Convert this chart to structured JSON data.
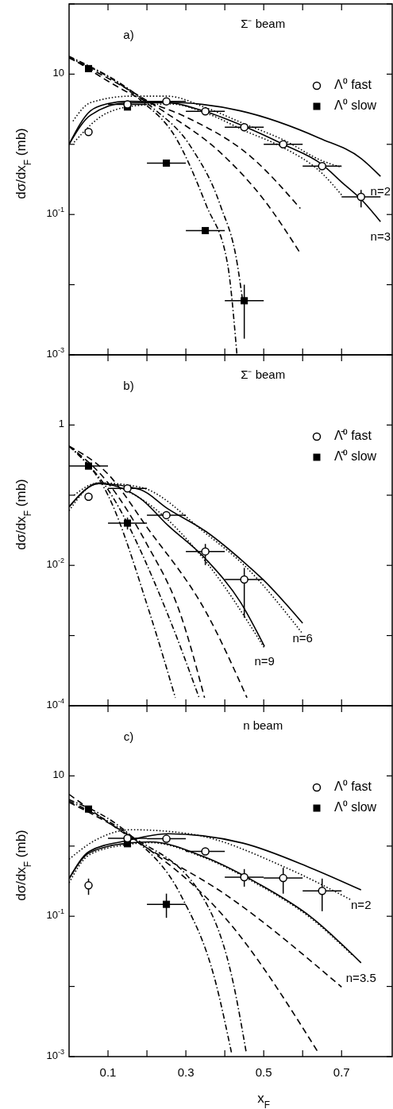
{
  "chart_data": [
    {
      "type": "line",
      "title": "Σ⁻ beam",
      "ylabel": "dσ/dx$_{F}$ (mb)",
      "log": true,
      "legend": "top right",
      "tick_labels": "y",
      "xlim": [
        0,
        0.83
      ],
      "ylim": [
        0.001,
        100
      ],
      "xticks": [
        {
          "value": 0.1,
          "label": null
        },
        {
          "value": 0.2,
          "label": null
        },
        {
          "value": 0.3,
          "label": null
        },
        {
          "value": 0.4,
          "label": null
        },
        {
          "value": 0.5,
          "label": null
        },
        {
          "value": 0.6,
          "label": null
        },
        {
          "value": 0.7,
          "label": null
        }
      ],
      "yticks": [
        {
          "value": 100,
          "label": null
        },
        {
          "value": 10,
          "label": "10"
        },
        {
          "value": 1,
          "label": null
        },
        {
          "value": 0.1,
          "label": "10$^{-1}$"
        },
        {
          "value": 0.01,
          "label": null
        },
        {
          "value": 0.001,
          "label": "10$^{-3}$"
        }
      ],
      "annotations": [
        "a)",
        {
          "text": "n=2",
          "x": 0.8,
          "y": 0.35
        },
        {
          "text": "n=3",
          "x": 0.8,
          "y": 0.079
        }
      ],
      "series": [
        {
          "type": "line",
          "color": "#000000",
          "line_style": "solid",
          "x": [
            0,
            0.055,
            0.1,
            0.15,
            0.294,
            0.44,
            0.644,
            0.75,
            0.8
          ],
          "values": [
            1.0,
            3.0,
            3.8,
            4.1,
            3.9,
            3.0,
            1.22,
            0.63,
            0.35
          ]
        },
        {
          "type": "line",
          "color": "#000000",
          "line_style": "solid",
          "x": [
            0,
            0.055,
            0.15,
            0.25,
            0.353,
            0.45,
            0.55,
            0.651,
            0.7,
            0.75,
            0.8
          ],
          "values": [
            1.0,
            2.6,
            3.9,
            3.9,
            2.89,
            1.8,
            1.0,
            0.51,
            0.29,
            0.165,
            0.079
          ]
        },
        {
          "type": "line",
          "color": "#000000",
          "line_style": "dotted",
          "x": [
            0.01,
            0.055,
            0.159,
            0.252,
            0.353,
            0.45,
            0.55,
            0.651,
            0.7
          ],
          "values": [
            2.14,
            3.92,
            4.86,
            4.86,
            3.3,
            1.96,
            1.16,
            0.58,
            0.47
          ]
        },
        {
          "type": "line",
          "color": "#000000",
          "line_style": "dotted",
          "x": [
            0.013,
            0.096,
            0.183,
            0.262,
            0.353,
            0.457,
            0.55,
            0.651,
            0.7
          ],
          "values": [
            1.07,
            2.77,
            3.6,
            3.75,
            2.77,
            1.51,
            0.9,
            0.38,
            0.19
          ]
        },
        {
          "type": "line",
          "color": "#000000",
          "line_style": "dashed",
          "x": [
            0,
            0.183,
            0.294,
            0.472,
            0.594
          ],
          "values": [
            17.9,
            4.47,
            2.54,
            0.63,
            0.122
          ]
        },
        {
          "type": "line",
          "color": "#000000",
          "line_style": "dashed",
          "x": [
            0,
            0.24,
            0.389,
            0.502,
            0.594
          ],
          "values": [
            17.1,
            3.02,
            0.76,
            0.158,
            0.028
          ]
        },
        {
          "type": "line",
          "color": "#000000",
          "line_style": "dashdot",
          "x": [
            0,
            0.183,
            0.273,
            0.353,
            0.407,
            0.431
          ],
          "values": [
            17.1,
            4.28,
            1.27,
            0.133,
            0.0198,
            0.00104
          ]
        },
        {
          "type": "line",
          "color": "#000000",
          "line_style": "dashdot",
          "x": [
            0,
            0.207,
            0.314,
            0.389,
            0.432,
            0.445
          ],
          "values": [
            17.9,
            3.6,
            0.9,
            0.133,
            0.0198,
            0.0064
          ]
        },
        {
          "type": "scatter",
          "name": "Λ⁰ fast",
          "color": "#ffffff",
          "marker": "circle",
          "x": [
            0.05,
            0.15,
            0.25,
            0.35,
            0.45,
            0.55,
            0.65,
            0.75
          ],
          "values": [
            1.5,
            3.7,
            4.1,
            2.95,
            1.75,
            1.0,
            0.49,
            0.178
          ],
          "xerrors": [
            null,
            [
              0.1,
              0.2
            ],
            [
              0.2,
              0.3
            ],
            [
              0.3,
              0.4
            ],
            [
              0.4,
              0.5
            ],
            [
              0.5,
              0.6
            ],
            [
              0.6,
              0.7
            ],
            [
              0.7,
              0.8
            ]
          ],
          "errors": [
            null,
            null,
            null,
            null,
            null,
            null,
            null,
            [
              0.126,
              0.224
            ]
          ]
        },
        {
          "type": "scatter",
          "name": "Λ⁰ slow",
          "color": "#000000",
          "marker": "square",
          "x": [
            0.05,
            0.15,
            0.25,
            0.35,
            0.45
          ],
          "values": [
            12,
            3.4,
            0.54,
            0.059,
            0.0059
          ],
          "xerrors": [
            null,
            null,
            [
              0.2,
              0.3
            ],
            [
              0.3,
              0.4
            ],
            [
              0.4,
              0.5
            ]
          ],
          "errors": [
            null,
            null,
            null,
            null,
            [
              0.0017,
              0.01
            ]
          ]
        }
      ]
    },
    {
      "type": "line",
      "title": "Σ⁻ beam",
      "ylabel": "dσ/dx$_{F}$ (mb)",
      "log": true,
      "legend": "top right",
      "tick_labels": "y",
      "xlim": [
        0,
        0.83
      ],
      "ylim": [
        0.0001,
        10
      ],
      "xticks": [
        {
          "value": 0.1,
          "label": null
        },
        {
          "value": 0.2,
          "label": null
        },
        {
          "value": 0.3,
          "label": null
        },
        {
          "value": 0.4,
          "label": null
        },
        {
          "value": 0.5,
          "label": null
        },
        {
          "value": 0.6,
          "label": null
        },
        {
          "value": 0.7,
          "label": null
        }
      ],
      "yticks": [
        {
          "value": 10,
          "label": null
        },
        {
          "value": 1,
          "label": "1"
        },
        {
          "value": 0.1,
          "label": null
        },
        {
          "value": 0.01,
          "label": "10$^{-2}$"
        },
        {
          "value": 0.001,
          "label": null
        },
        {
          "value": 0.0001,
          "label": "10$^{-4}$"
        }
      ],
      "annotations": [
        "b)",
        {
          "text": "n=6",
          "x": 0.6,
          "y": 0.0015
        },
        {
          "text": "n=9",
          "x": 0.502,
          "y": 0.0007
        }
      ],
      "series": [
        {
          "type": "line",
          "color": "#000000",
          "line_style": "solid",
          "x": [
            0,
            0.076,
            0.183,
            0.252,
            0.353,
            0.45,
            0.502,
            0.6
          ],
          "values": [
            0.068,
            0.146,
            0.12,
            0.065,
            0.03,
            0.011,
            0.006,
            0.0015
          ]
        },
        {
          "type": "line",
          "color": "#000000",
          "line_style": "solid",
          "x": [
            0,
            0.076,
            0.183,
            0.252,
            0.353,
            0.44,
            0.502
          ],
          "values": [
            0.068,
            0.146,
            0.09,
            0.038,
            0.012,
            0.003,
            0.0007
          ]
        },
        {
          "type": "line",
          "color": "#000000",
          "line_style": "dotted",
          "x": [
            0,
            0.076,
            0.183,
            0.353,
            0.45,
            0.6
          ],
          "values": [
            0.06,
            0.15,
            0.13,
            0.028,
            0.01,
            0.00106
          ]
        },
        {
          "type": "line",
          "color": "#000000",
          "line_style": "dotted",
          "x": [
            0.013,
            0.076,
            0.183,
            0.353,
            0.502
          ],
          "values": [
            0.1,
            0.15,
            0.09,
            0.011,
            0.00066
          ]
        },
        {
          "type": "line",
          "color": "#000000",
          "line_style": "dashed",
          "x": [
            0,
            0.1,
            0.2,
            0.353,
            0.457
          ],
          "values": [
            0.5,
            0.2,
            0.035,
            0.0021,
            0.00013
          ]
        },
        {
          "type": "line",
          "color": "#000000",
          "line_style": "dashed",
          "x": [
            0,
            0.1,
            0.2,
            0.285,
            0.348
          ],
          "values": [
            0.5,
            0.15,
            0.02,
            0.0021,
            0.00013
          ]
        },
        {
          "type": "line",
          "color": "#000000",
          "line_style": "dashdot",
          "x": [
            0,
            0.1,
            0.207,
            0.273
          ],
          "values": [
            0.5,
            0.1,
            0.0021,
            0.00013
          ]
        },
        {
          "type": "line",
          "color": "#000000",
          "line_style": "dashdot",
          "x": [
            0,
            0.1,
            0.252,
            0.334
          ],
          "values": [
            0.5,
            0.12,
            0.0021,
            0.00013
          ]
        },
        {
          "type": "scatter",
          "name": "Λ̄⁰ fast",
          "color": "#ffffff",
          "marker": "circle",
          "x": [
            0.05,
            0.15,
            0.25,
            0.35,
            0.45
          ],
          "values": [
            0.095,
            0.125,
            0.052,
            0.0158,
            0.0063
          ],
          "xerrors": [
            null,
            [
              0.1,
              0.2
            ],
            [
              0.2,
              0.3
            ],
            [
              0.3,
              0.4
            ],
            [
              0.4,
              0.5
            ]
          ],
          "errors": [
            null,
            null,
            null,
            [
              0.0101,
              0.0202
            ],
            [
              0.0018,
              0.0092
            ]
          ]
        },
        {
          "type": "scatter",
          "name": "Λ̄⁰ slow",
          "color": "#000000",
          "marker": "square",
          "x": [
            0.05,
            0.15
          ],
          "values": [
            0.26,
            0.04
          ],
          "xerrors": [
            [
              0,
              0.1
            ],
            [
              0.1,
              0.2
            ]
          ],
          "errors": [
            null,
            [
              0.0325,
              0.048
            ]
          ]
        }
      ]
    },
    {
      "type": "line",
      "title": "n beam",
      "xlabel": "x$_{F}$",
      "ylabel": "dσ/dx$_{F}$ (mb)",
      "log": true,
      "legend": "top right",
      "xlim": [
        0,
        0.83
      ],
      "ylim": [
        0.001,
        100
      ],
      "xticks": [
        0.1,
        {
          "value": 0.2,
          "label": null
        },
        0.3,
        {
          "value": 0.4,
          "label": null
        },
        0.5,
        {
          "value": 0.6,
          "label": null
        },
        0.7
      ],
      "yticks": [
        {
          "value": 100,
          "label": null
        },
        {
          "value": 10,
          "label": "10"
        },
        {
          "value": 1,
          "label": null
        },
        {
          "value": 0.1,
          "label": "10$^{-1}$"
        },
        {
          "value": 0.01,
          "label": null
        },
        {
          "value": 0.001,
          "label": "10$^{-3}$"
        }
      ],
      "annotations": [
        "c)",
        {
          "text": "n=2",
          "x": 0.75,
          "y": 0.237
        },
        {
          "text": "n=3.5",
          "x": 0.75,
          "y": 0.0217
        }
      ],
      "series": [
        {
          "type": "line",
          "color": "#000000",
          "line_style": "solid",
          "x": [
            0,
            0.052,
            0.15,
            0.254,
            0.447,
            0.62,
            0.75
          ],
          "values": [
            0.344,
            0.84,
            1.2,
            1.5,
            1.1,
            0.49,
            0.237
          ]
        },
        {
          "type": "line",
          "color": "#000000",
          "line_style": "solid",
          "x": [
            0,
            0.052,
            0.15,
            0.208,
            0.348,
            0.487,
            0.62,
            0.75
          ],
          "values": [
            0.344,
            0.8,
            1.1,
            1.15,
            0.7,
            0.29,
            0.099,
            0.0217
          ]
        },
        {
          "type": "line",
          "color": "#000000",
          "line_style": "dotted",
          "x": [
            0,
            0.066,
            0.159,
            0.308,
            0.558,
            0.726
          ],
          "values": [
            0.65,
            1.2,
            1.71,
            1.5,
            0.49,
            0.169
          ]
        },
        {
          "type": "line",
          "color": "#000000",
          "line_style": "dotted",
          "x": [
            0,
            0.052,
            0.15,
            0.208,
            0.348,
            0.487,
            0.62,
            0.726
          ],
          "values": [
            0.3,
            0.75,
            1.05,
            1.12,
            0.68,
            0.28,
            0.095,
            0.0284
          ]
        },
        {
          "type": "line",
          "color": "#000000",
          "line_style": "dashed",
          "x": [
            0,
            0.159,
            0.404,
            0.7
          ],
          "values": [
            5.46,
            1.31,
            0.2,
            0.0098
          ]
        },
        {
          "type": "line",
          "color": "#000000",
          "line_style": "dashed",
          "x": [
            0,
            0.159,
            0.404,
            0.642
          ],
          "values": [
            4.2,
            1.35,
            0.0906,
            0.0011
          ]
        },
        {
          "type": "line",
          "color": "#000000",
          "line_style": "dashdot",
          "x": [
            0,
            0.159,
            0.287,
            0.376,
            0.417
          ],
          "values": [
            4.6,
            1.4,
            0.2,
            0.0117,
            0.00115
          ]
        },
        {
          "type": "line",
          "color": "#000000",
          "line_style": "dashdot",
          "x": [
            0,
            0.159,
            0.348,
            0.421,
            0.455
          ],
          "values": [
            4.4,
            1.4,
            0.169,
            0.0117,
            0.00115
          ]
        },
        {
          "type": "scatter",
          "name": "Λ⁰ fast",
          "color": "#ffffff",
          "marker": "circle",
          "x": [
            0.05,
            0.15,
            0.25,
            0.35,
            0.45,
            0.55,
            0.65
          ],
          "values": [
            0.275,
            1.29,
            1.27,
            0.84,
            0.36,
            0.35,
            0.23
          ],
          "xerrors": [
            null,
            [
              0.1,
              0.2
            ],
            [
              0.2,
              0.3
            ],
            [
              0.3,
              0.4
            ],
            [
              0.4,
              0.5
            ],
            [
              0.5,
              0.6
            ],
            [
              0.6,
              0.7
            ]
          ],
          "errors": [
            [
              0.202,
              0.344
            ],
            null,
            null,
            null,
            [
              0.264,
              0.47
            ],
            [
              0.21,
              0.49
            ],
            [
              0.118,
              0.344
            ]
          ]
        },
        {
          "type": "scatter",
          "name": "Λ⁰ slow",
          "color": "#000000",
          "marker": "square",
          "x": [
            0.05,
            0.15,
            0.25
          ],
          "values": [
            3.37,
            1.08,
            0.148
          ],
          "xerrors": [
            null,
            null,
            [
              0.2,
              0.3
            ]
          ],
          "errors": [
            null,
            null,
            [
              0.095,
              0.21
            ]
          ]
        }
      ]
    }
  ]
}
